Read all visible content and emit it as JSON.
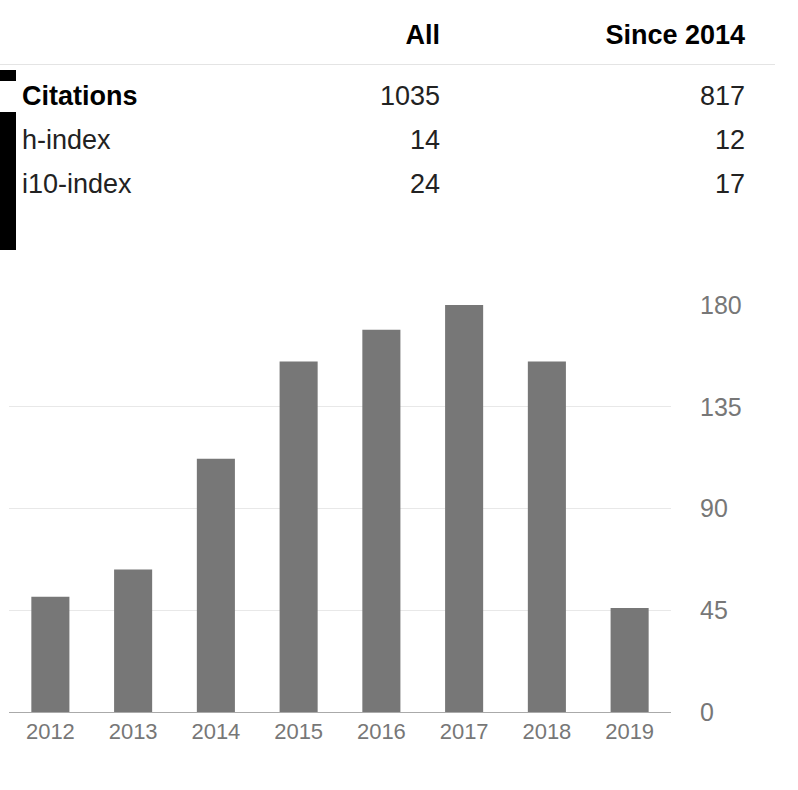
{
  "table": {
    "header": [
      "All",
      "Since 2014"
    ],
    "rows": [
      [
        "Citations",
        1035,
        817
      ],
      [
        "h-index",
        14,
        12
      ],
      [
        "i10-index",
        24,
        17
      ]
    ]
  },
  "chart_data": {
    "type": "bar",
    "categories": [
      "2012",
      "2013",
      "2014",
      "2015",
      "2016",
      "2017",
      "2018",
      "2019"
    ],
    "values": [
      51,
      63,
      112,
      155,
      169,
      180,
      155,
      46
    ],
    "color": "#777777",
    "ylim": [
      0,
      180
    ],
    "yticks": [
      0,
      45,
      90,
      135,
      180
    ],
    "grid": true
  }
}
